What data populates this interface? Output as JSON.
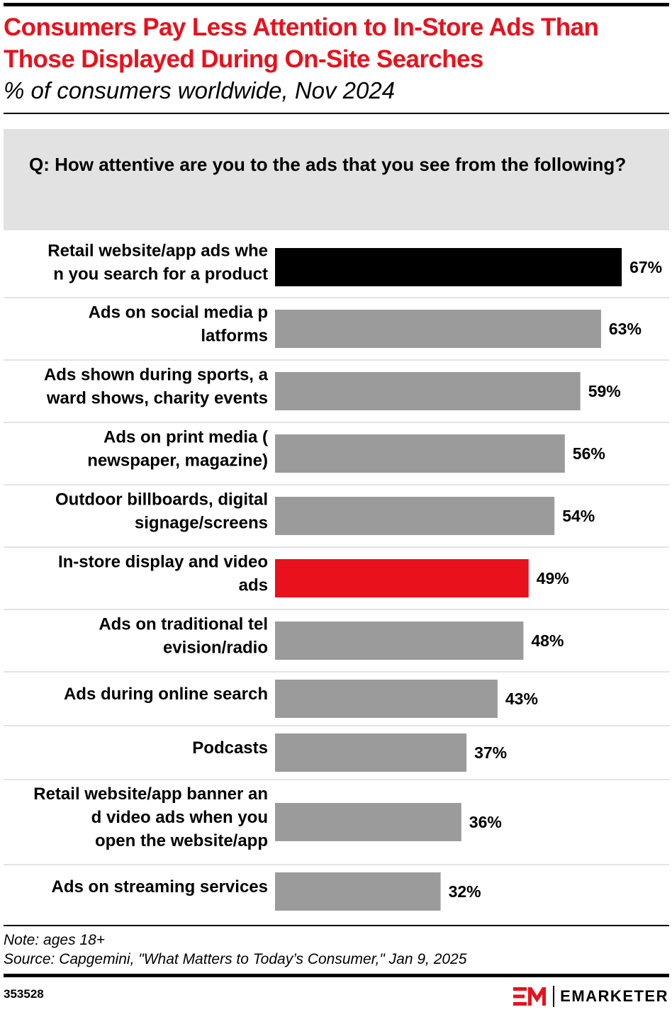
{
  "header": {
    "title": "Consumers Pay Less Attention to In-Store Ads Than Those Displayed During On-Site Searches",
    "subtitle": "% of consumers worldwide, Nov 2024"
  },
  "question": "Q: How attentive are you to the ads that you see from the following?",
  "colors": {
    "default_bar": "#9b9b9b",
    "highlight_black": "#000000",
    "highlight_red": "#e8111c",
    "title_red": "#e8111c",
    "question_bg": "#e2e2e2",
    "separator": "#dcdcdc"
  },
  "chart_data": {
    "type": "bar",
    "orientation": "horizontal",
    "categories": [
      "Retail website/app ads when you search for a product",
      "Ads on social media platforms",
      "Ads shown during sports, award shows, charity events",
      "Ads on print media (newspaper, magazine)",
      "Outdoor billboards, digital signage/screens",
      "In-store display and video ads",
      "Ads on traditional television/radio",
      "Ads during online search",
      "Podcasts",
      "Retail website/app banner and video ads when you open the website/app",
      "Ads on streaming services"
    ],
    "values": [
      67,
      63,
      59,
      56,
      54,
      49,
      48,
      43,
      37,
      36,
      32
    ],
    "value_labels": [
      "67%",
      "63%",
      "59%",
      "56%",
      "54%",
      "49%",
      "48%",
      "43%",
      "37%",
      "36%",
      "32%"
    ],
    "bar_colors": [
      "#000000",
      "#9b9b9b",
      "#9b9b9b",
      "#9b9b9b",
      "#9b9b9b",
      "#e8111c",
      "#9b9b9b",
      "#9b9b9b",
      "#9b9b9b",
      "#9b9b9b",
      "#9b9b9b"
    ],
    "title": "Consumers Pay Less Attention to In-Store Ads Than Those Displayed During On-Site Searches",
    "subtitle": "% of consumers worldwide, Nov 2024",
    "xlim": [
      0,
      67
    ],
    "grid": false
  },
  "footer": {
    "note": "Note: ages 18+",
    "source": "Source: Capgemini, \"What Matters to Today’s Consumer,\" Jan 9, 2025",
    "chart_id": "353528",
    "brand": "EMARKETER"
  }
}
